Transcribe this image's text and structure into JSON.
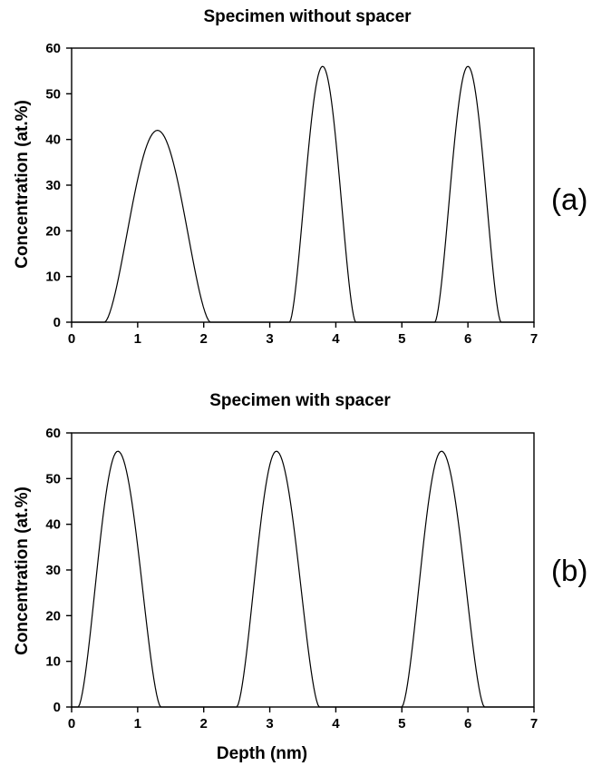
{
  "chart_data": [
    {
      "type": "line",
      "panel_label": "(a)",
      "title": "Specimen without spacer",
      "xlabel": "",
      "ylabel": "Concentration  (at.%)",
      "xlim": [
        0,
        7
      ],
      "ylim": [
        0,
        60
      ],
      "xticks": [
        "0",
        "1",
        "2",
        "3",
        "4",
        "5",
        "6",
        "7"
      ],
      "yticks": [
        "0",
        "10",
        "20",
        "30",
        "40",
        "50",
        "60"
      ],
      "grid": false,
      "series": [
        {
          "peaks": [
            {
              "start": 0.5,
              "center": 1.3,
              "end": 2.1,
              "max": 42
            },
            {
              "start": 3.3,
              "center": 3.8,
              "end": 4.3,
              "max": 56
            },
            {
              "start": 5.5,
              "center": 6.0,
              "end": 6.5,
              "max": 56
            }
          ]
        }
      ]
    },
    {
      "type": "line",
      "panel_label": "(b)",
      "title": "Specimen with spacer",
      "xlabel": "Depth (nm)",
      "ylabel": "Concentration (at.%)",
      "xlim": [
        0,
        7
      ],
      "ylim": [
        0,
        60
      ],
      "xticks": [
        "0",
        "1",
        "2",
        "3",
        "4",
        "5",
        "6",
        "7"
      ],
      "yticks": [
        "0",
        "10",
        "20",
        "30",
        "40",
        "50",
        "60"
      ],
      "grid": false,
      "series": [
        {
          "peaks": [
            {
              "start": 0.1,
              "center": 0.7,
              "end": 1.35,
              "max": 56
            },
            {
              "start": 2.5,
              "center": 3.1,
              "end": 3.75,
              "max": 56
            },
            {
              "start": 5.0,
              "center": 5.6,
              "end": 6.25,
              "max": 56
            }
          ]
        }
      ]
    }
  ]
}
